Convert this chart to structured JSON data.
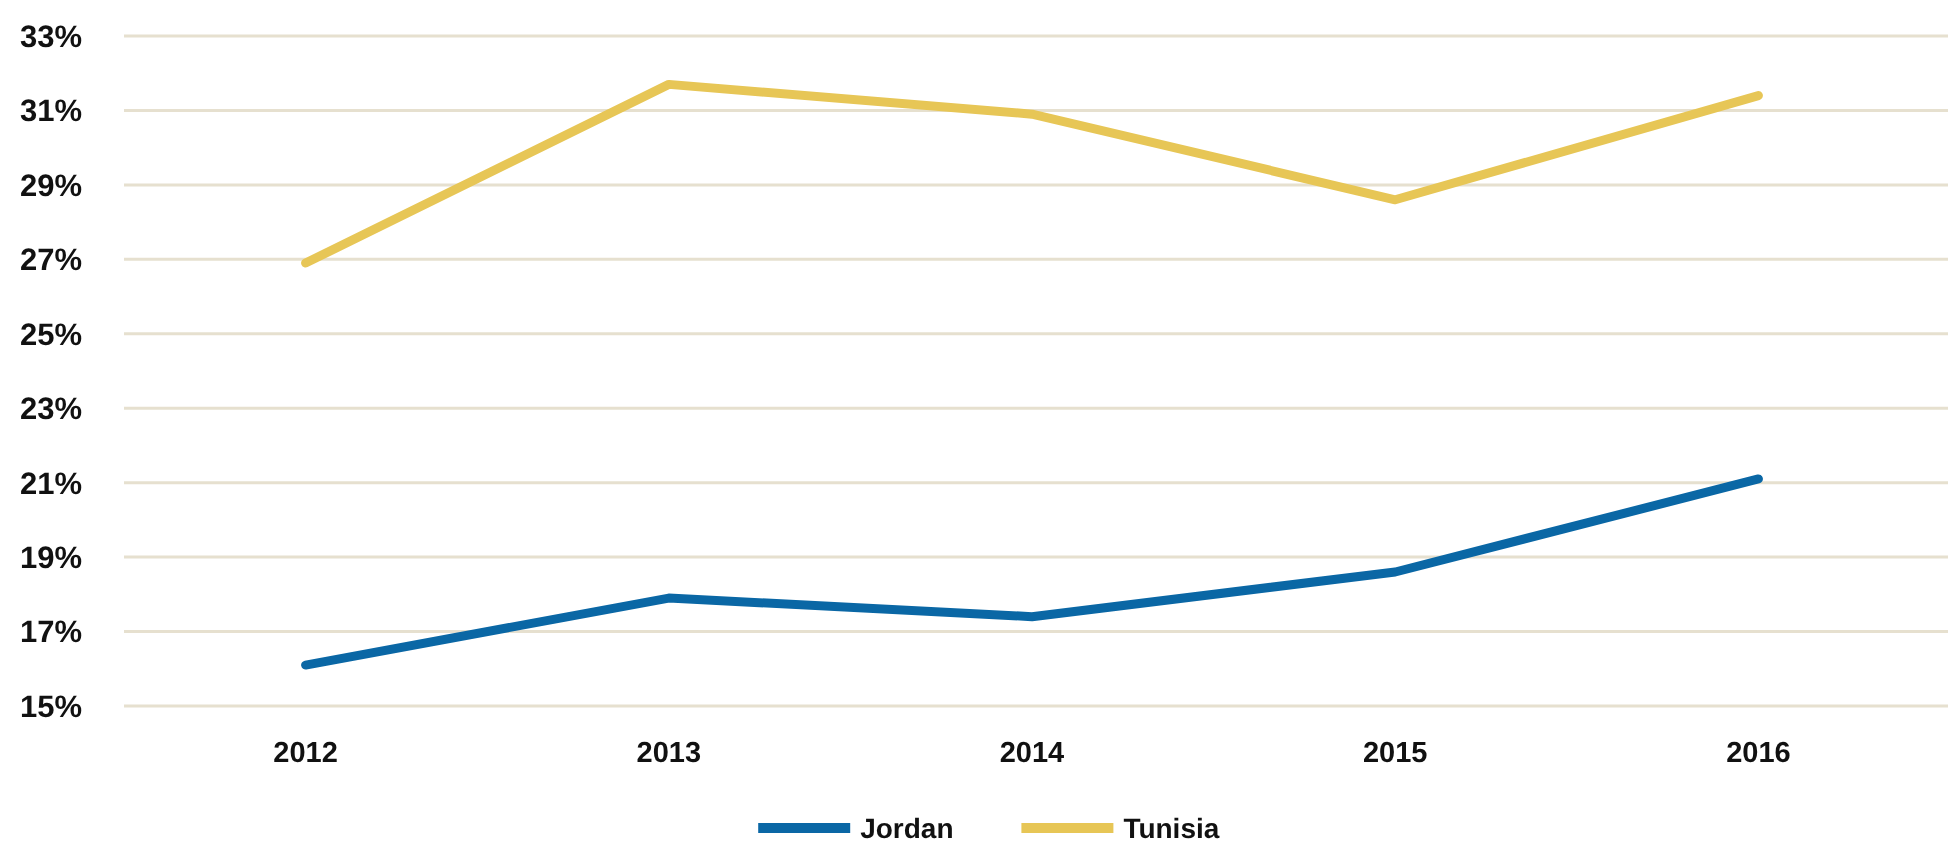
{
  "chart_data": {
    "type": "line",
    "categories": [
      "2012",
      "2013",
      "2014",
      "2015",
      "2016"
    ],
    "series": [
      {
        "name": "Jordan",
        "color": "#0a67a5",
        "values": [
          16.1,
          17.9,
          17.4,
          18.6,
          21.1
        ]
      },
      {
        "name": "Tunisia",
        "color": "#e7c656",
        "values": [
          26.9,
          31.7,
          30.9,
          28.6,
          31.4
        ]
      }
    ],
    "ylim": [
      15,
      33
    ],
    "yticks": [
      {
        "value": 15,
        "label": "15%"
      },
      {
        "value": 17,
        "label": "17%"
      },
      {
        "value": 19,
        "label": "19%"
      },
      {
        "value": 21,
        "label": "21%"
      },
      {
        "value": 23,
        "label": "23%"
      },
      {
        "value": 25,
        "label": "25%"
      },
      {
        "value": 27,
        "label": "27%"
      },
      {
        "value": 29,
        "label": "29%"
      },
      {
        "value": 31,
        "label": "31%"
      },
      {
        "value": 33,
        "label": "33%"
      }
    ],
    "grid": "y",
    "legend": "bottom",
    "marker": "none",
    "line_style": "solid"
  }
}
